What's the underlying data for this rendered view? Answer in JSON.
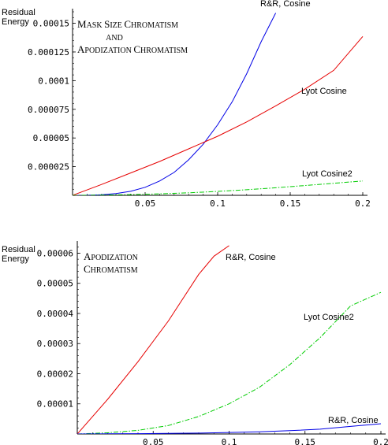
{
  "chart_data": [
    {
      "type": "line",
      "ylabel_lines": [
        "Residual",
        "Energy"
      ],
      "title_lines": [
        [
          "M",
          "ASK ",
          "S",
          "IZE ",
          "C",
          "HROMATISM"
        ],
        [
          "AND"
        ],
        [
          "A",
          "PODIZATION ",
          "C",
          "HROMATISM"
        ]
      ],
      "xlim": [
        0,
        0.2
      ],
      "ylim": [
        0,
        0.00016
      ],
      "x_ticks": [
        0.05,
        0.1,
        0.15,
        0.2
      ],
      "x_tick_labels": [
        "0.05",
        "0.1",
        "0.15",
        "0.2"
      ],
      "y_ticks": [
        2.5e-05,
        5e-05,
        7.5e-05,
        0.0001,
        0.000125,
        0.00015
      ],
      "y_tick_labels": [
        "0.000025",
        "0.00005",
        "0.000075",
        "0.0001",
        "0.000125",
        "0.00015"
      ],
      "series": [
        {
          "name": "R&R, Cosine",
          "color": "#0000e6",
          "dash": "solid",
          "x": [
            0,
            0.01,
            0.02,
            0.03,
            0.04,
            0.05,
            0.06,
            0.07,
            0.08,
            0.09,
            0.1,
            0.11,
            0.12,
            0.13,
            0.14
          ],
          "y": [
            0,
            1e-07,
            5e-07,
            1.5e-06,
            3.5e-06,
            7e-06,
            1.25e-05,
            2e-05,
            3.1e-05,
            4.45e-05,
            6.15e-05,
            8.15e-05,
            0.000106,
            0.000134,
            0.000159
          ]
        },
        {
          "name": "Lyot  Cosine",
          "color": "#e60000",
          "dash": "solid",
          "x": [
            0,
            0.02,
            0.04,
            0.06,
            0.08,
            0.1,
            0.12,
            0.14,
            0.16,
            0.18,
            0.2
          ],
          "y": [
            0,
            9.5e-06,
            1.95e-05,
            2.95e-05,
            4.05e-05,
            5.15e-05,
            6.4e-05,
            7.8e-05,
            9.25e-05,
            0.000109,
            0.0001385
          ]
        },
        {
          "name": "Lyot Cosine2",
          "color": "#00cc00",
          "dash": "dashdot",
          "x": [
            0,
            0.02,
            0.04,
            0.06,
            0.08,
            0.1,
            0.12,
            0.14,
            0.16,
            0.18,
            0.2
          ],
          "y": [
            0,
            2e-07,
            6e-07,
            1.3e-06,
            2.2e-06,
            3.4e-06,
            4.9e-06,
            6.6e-06,
            8.5e-06,
            1.05e-05,
            1.25e-05
          ]
        }
      ]
    },
    {
      "type": "line",
      "ylabel_lines": [
        "Residual",
        "Energy"
      ],
      "title_lines": [
        [
          "A",
          "PODIZATION"
        ],
        [
          "C",
          "HROMATISM"
        ]
      ],
      "xlim": [
        0,
        0.2
      ],
      "ylim": [
        0,
        6.3e-05
      ],
      "x_ticks": [
        0.05,
        0.1,
        0.15,
        0.2
      ],
      "x_tick_labels": [
        "0.05",
        "0.1",
        "0.15",
        "0.2"
      ],
      "y_ticks": [
        1e-05,
        2e-05,
        3e-05,
        4e-05,
        5e-05,
        6e-05
      ],
      "y_tick_labels": [
        "0.00001",
        "0.00002",
        "0.00003",
        "0.00004",
        "0.00005",
        "0.00006"
      ],
      "series": [
        {
          "name": "R&R, Cosine",
          "color": "#e60000",
          "dash": "solid",
          "x": [
            0,
            0.02,
            0.04,
            0.06,
            0.08,
            0.09,
            0.1
          ],
          "y": [
            0,
            1.15e-05,
            2.4e-05,
            3.75e-05,
            5.3e-05,
            5.9e-05,
            6.25e-05
          ]
        },
        {
          "name": "Lyot Cosine2",
          "color": "#00cc00",
          "dash": "dashdot",
          "x": [
            0,
            0.02,
            0.04,
            0.06,
            0.08,
            0.1,
            0.12,
            0.14,
            0.16,
            0.18,
            0.2
          ],
          "y": [
            0,
            4e-07,
            1.2e-06,
            2.8e-06,
            5.8e-06,
            1e-05,
            1.55e-05,
            2.3e-05,
            3.2e-05,
            4.25e-05,
            4.7e-05
          ]
        },
        {
          "name": "R&R, Cosine",
          "color": "#0000e6",
          "dash": "solid",
          "x": [
            0,
            0.02,
            0.04,
            0.06,
            0.08,
            0.1,
            0.12,
            0.14,
            0.16,
            0.18,
            0.2
          ],
          "y": [
            0,
            5e-08,
            1e-07,
            2e-07,
            3e-07,
            5e-07,
            7e-07,
            1.1e-06,
            1.6e-06,
            2.5e-06,
            3.4e-06
          ]
        }
      ]
    }
  ]
}
